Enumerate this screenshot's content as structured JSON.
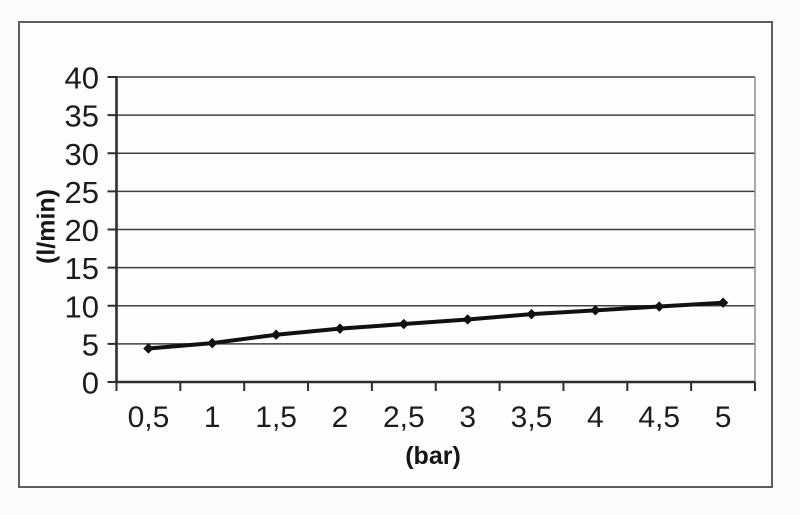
{
  "chart_data": {
    "type": "line",
    "xlabel": "(bar)",
    "ylabel": "(l/min)",
    "categories": [
      "0,5",
      "1",
      "1,5",
      "2",
      "2,5",
      "3",
      "3,5",
      "4",
      "4,5",
      "5"
    ],
    "values": [
      4.4,
      5.1,
      6.2,
      7.0,
      7.6,
      8.2,
      8.9,
      9.4,
      9.9,
      10.4
    ],
    "ylim": [
      0,
      40
    ],
    "yticks": [
      0,
      5,
      10,
      15,
      20,
      25,
      30,
      35,
      40
    ],
    "grid": true,
    "legend": false,
    "marker": "diamond",
    "colors": {
      "line": "#111111",
      "marker": "#111111",
      "grid": "#3f3f3f",
      "axis": "#2e2e2e",
      "plot_border": "#8f8f8f",
      "text": "#1c1c1c",
      "frame_border": "#5d5d5d",
      "plot_background": "#fdfdfb"
    }
  }
}
